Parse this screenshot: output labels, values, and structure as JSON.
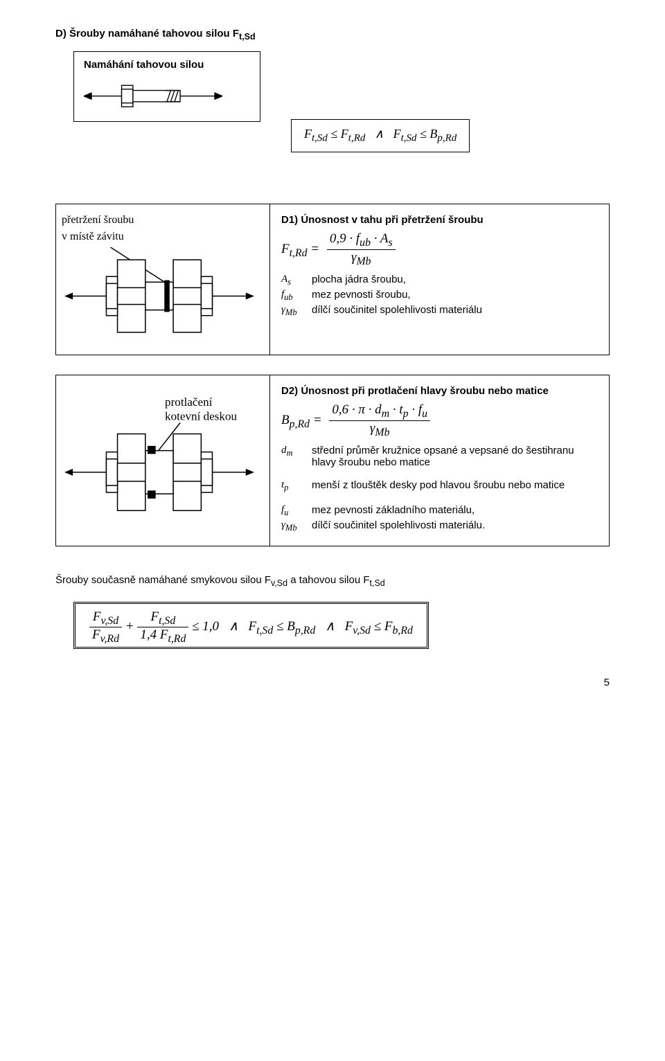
{
  "title": "D) Šrouby namáhané tahovou silou F<sub>t,Sd</sub>",
  "loading_heading": "Namáhání tahovou silou",
  "formula1": "F<sub>t,Sd</sub> ≤ F<sub>t,Rd</sub>&nbsp;&nbsp;&nbsp;∧&nbsp;&nbsp;&nbsp;F<sub>t,Sd</sub> ≤ B<sub>p,Rd</sub>",
  "panelD1": {
    "caption_line1": "přetržení šroubu",
    "caption_line2": "v místě závitu",
    "heading": "D1) Únosnost v tahu při přetržení šroubu",
    "formula_lhs": "F<sub>t,Rd</sub> =",
    "formula_num": "0,9 · f<sub>ub</sub> · A<sub>s</sub>",
    "formula_den": "γ<sub>Mb</sub>",
    "defs": [
      {
        "sym": "A<sub>s</sub>",
        "txt": "plocha jádra šroubu,"
      },
      {
        "sym": "f<sub>ub</sub>",
        "txt": "mez pevnosti šroubu,"
      },
      {
        "sym": "γ<sub>Mb</sub>",
        "txt": "dílčí součinitel spolehlivosti materiálu"
      }
    ]
  },
  "panelD2": {
    "caption_line1": "protlačení",
    "caption_line2": "kotevní deskou",
    "heading": "D2) Únosnost při protlačení hlavy šroubu nebo matice",
    "formula_lhs": "B<sub>p,Rd</sub> =",
    "formula_num": "0,6 · π · d<sub>m</sub> · t<sub>p</sub> · f<sub>u</sub>",
    "formula_den": "γ<sub>Mb</sub>",
    "def_dm_sym": "d<sub>m</sub>",
    "def_dm_txt": "střední průměr kružnice opsané a vepsané do šestihranu hlavy šroubu nebo matice",
    "def_tp_sym": "t<sub>p</sub>",
    "def_tp_txt": "menší z tlouštěk desky pod hlavou šroubu nebo matice",
    "def_fu_sym": "f<sub>u</sub>",
    "def_fu_txt": "mez pevnosti základního materiálu,",
    "def_g_sym": "γ<sub>Mb</sub>",
    "def_g_txt": "dílčí součinitel spolehlivosti materiálu."
  },
  "final_text": "Šrouby současně namáhané smykovou silou F<sub>v,Sd</sub> a tahovou silou F<sub>t,Sd</sub>",
  "final_formula": {
    "term1_num": "F<sub>v,Sd</sub>",
    "term1_den": "F<sub>v,Rd</sub>",
    "plus": " + ",
    "term2_num": "F<sub>t,Sd</sub>",
    "term2_den": "1,4 F<sub>t,Rd</sub>",
    "rest": " ≤ 1,0&nbsp;&nbsp;&nbsp;∧&nbsp;&nbsp;&nbsp;F<sub>t,Sd</sub> ≤ B<sub>p,Rd</sub>&nbsp;&nbsp;&nbsp;∧&nbsp;&nbsp;&nbsp;F<sub>v,Sd</sub> ≤ F<sub>b,Rd</sub>"
  },
  "pagenum": "5",
  "svg": {
    "stroke": "#000"
  }
}
